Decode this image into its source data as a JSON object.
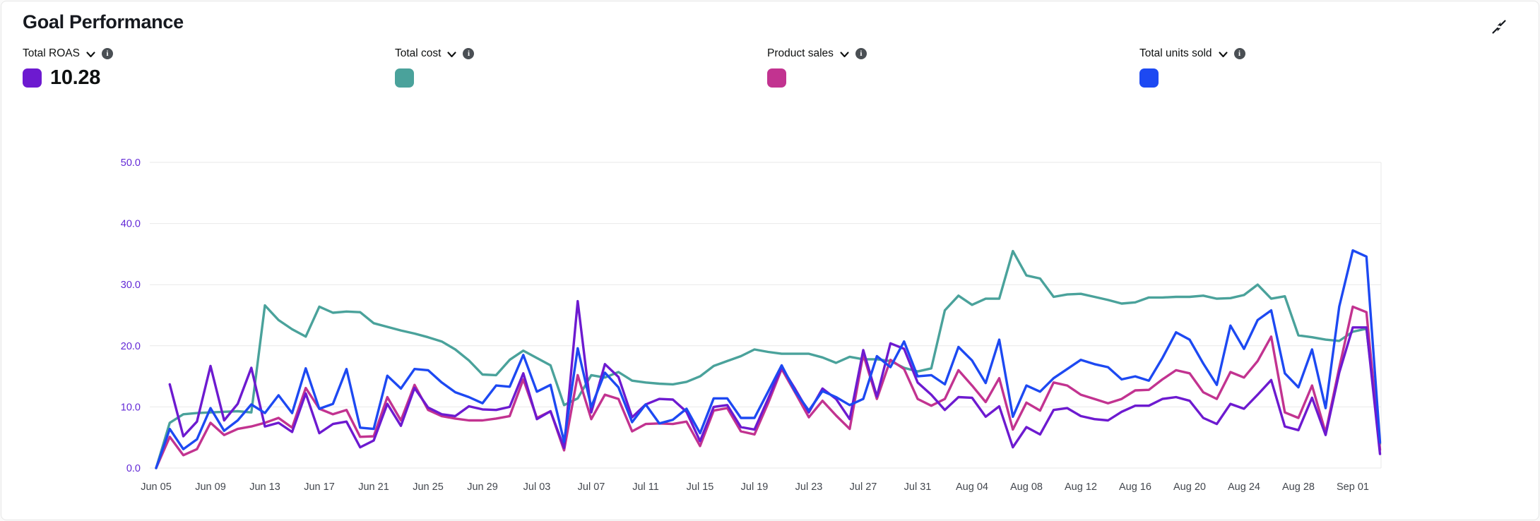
{
  "header": {
    "title": "Goal Performance"
  },
  "toolbar": {
    "collapse_icon": "collapse-diagonal-arrows"
  },
  "metrics": [
    {
      "label": "Total ROAS",
      "value": "10.28",
      "color": "#6d1ad0",
      "dropdown_icon": "chevron-down-icon",
      "info_icon": "info-icon"
    },
    {
      "label": "Total cost",
      "value": "",
      "color": "#4aa29b",
      "dropdown_icon": "chevron-down-icon",
      "info_icon": "info-icon"
    },
    {
      "label": "Product sales",
      "value": "",
      "color": "#c23390",
      "dropdown_icon": "chevron-down-icon",
      "info_icon": "info-icon"
    },
    {
      "label": "Total units sold",
      "value": "",
      "color": "#1d49f2",
      "dropdown_icon": "chevron-down-icon",
      "info_icon": "info-icon"
    }
  ],
  "chart_data": {
    "type": "line",
    "title": "Goal Performance",
    "x_start": "Jun 05",
    "x_end": "Sep 03",
    "x_interval_days": 1,
    "x_tick_labels": [
      "Jun 05",
      "Jun 09",
      "Jun 13",
      "Jun 17",
      "Jun 21",
      "Jun 25",
      "Jun 29",
      "Jul 03",
      "Jul 07",
      "Jul 11",
      "Jul 15",
      "Jul 19",
      "Jul 23",
      "Jul 27",
      "Jul 31",
      "Aug 04",
      "Aug 08",
      "Aug 12",
      "Aug 16",
      "Aug 20",
      "Aug 24",
      "Aug 28",
      "Sep 01"
    ],
    "x_tick_step_days": 4,
    "ylim": [
      0,
      50
    ],
    "y_tick_labels": [
      "0.0",
      "10.0",
      "20.0",
      "30.0",
      "40.0",
      "50.0"
    ],
    "grid": "horizontal",
    "legend_position": "top-swatches",
    "y_axis_label_color": "#6329d6",
    "x_axis_label_color": "#43474e",
    "gridline_color": "#e9e9e9",
    "series": [
      {
        "name": "Total ROAS",
        "id": "total-roas",
        "color": "#6d1ad0",
        "values": [
          null,
          13.7,
          5.2,
          7.6,
          16.7,
          7.8,
          10.5,
          16.4,
          6.8,
          7.4,
          5.9,
          12.2,
          5.7,
          7.2,
          7.6,
          3.4,
          4.5,
          10.5,
          6.9,
          13.1,
          9.9,
          8.8,
          8.5,
          10.1,
          9.6,
          9.5,
          10.0,
          15.5,
          8.0,
          9.3,
          3.3,
          27.3,
          9.1,
          17.0,
          14.9,
          8.3,
          10.4,
          11.3,
          11.2,
          9.2,
          4.4,
          10.0,
          10.3,
          6.7,
          6.3,
          11.3,
          16.5,
          12.9,
          9.1,
          13.0,
          11.3,
          8.0,
          19.3,
          11.7,
          20.4,
          19.5,
          14.0,
          12.0,
          9.5,
          11.6,
          11.5,
          8.4,
          10.1,
          3.4,
          6.7,
          5.5,
          9.5,
          9.8,
          8.5,
          8.0,
          7.8,
          9.2,
          10.2,
          10.2,
          11.3,
          11.6,
          11.0,
          8.2,
          7.2,
          10.5,
          9.7,
          12.0,
          14.4,
          6.8,
          6.2,
          11.5,
          5.4,
          15.6,
          23.0,
          23.0,
          2.3
        ]
      },
      {
        "name": "Total cost",
        "id": "total-cost",
        "color": "#4aa29b",
        "values": [
          0,
          7.4,
          8.8,
          9.0,
          9.1,
          9.2,
          9.3,
          9.1,
          26.6,
          24.2,
          22.7,
          21.5,
          26.4,
          25.4,
          25.6,
          25.5,
          23.7,
          23.1,
          22.5,
          22.0,
          21.4,
          20.7,
          19.4,
          17.6,
          15.3,
          15.2,
          17.7,
          19.2,
          18.0,
          16.8,
          10.3,
          11.4,
          15.2,
          14.8,
          15.7,
          14.3,
          14.0,
          13.8,
          13.7,
          14.1,
          15.0,
          16.7,
          17.5,
          18.3,
          19.4,
          19.0,
          18.7,
          18.7,
          18.7,
          18.1,
          17.2,
          18.2,
          17.8,
          17.8,
          17.5,
          16.4,
          15.8,
          16.3,
          25.8,
          28.2,
          26.7,
          27.7,
          27.7,
          35.5,
          31.5,
          31.0,
          28.0,
          28.4,
          28.5,
          28.0,
          27.5,
          26.9,
          27.1,
          27.9,
          27.9,
          28.0,
          28.0,
          28.2,
          27.7,
          27.8,
          28.3,
          30.0,
          27.7,
          28.1,
          21.7,
          21.4,
          21.0,
          20.8,
          22.3,
          22.8,
          4.0
        ]
      },
      {
        "name": "Product sales",
        "id": "product-sales",
        "color": "#c23390",
        "values": [
          0,
          5.1,
          2.1,
          3.1,
          7.4,
          5.4,
          6.4,
          6.8,
          7.4,
          8.2,
          6.6,
          13.1,
          9.7,
          8.8,
          9.5,
          5.1,
          5.2,
          11.6,
          7.8,
          13.6,
          9.5,
          8.5,
          8.1,
          7.8,
          7.8,
          8.1,
          8.5,
          14.5,
          8.2,
          9.3,
          2.9,
          15.2,
          8.0,
          12.0,
          11.3,
          6.0,
          7.2,
          7.3,
          7.2,
          7.6,
          3.6,
          9.4,
          9.8,
          6.0,
          5.5,
          10.6,
          16.2,
          12.3,
          8.3,
          11.0,
          8.6,
          6.4,
          18.6,
          11.3,
          17.7,
          16.2,
          11.3,
          10.2,
          11.3,
          16.0,
          13.5,
          10.8,
          14.7,
          6.3,
          10.7,
          9.4,
          14.0,
          13.5,
          12.0,
          11.3,
          10.6,
          11.3,
          12.7,
          12.8,
          14.5,
          16.0,
          15.5,
          12.4,
          11.3,
          15.7,
          14.8,
          17.5,
          21.5,
          9.1,
          8.2,
          13.5,
          5.8,
          16.4,
          26.4,
          25.5,
          3.0
        ]
      },
      {
        "name": "Total units sold",
        "id": "total-units-sold",
        "color": "#1d49f2",
        "values": [
          0,
          6.4,
          3.1,
          4.7,
          9.8,
          6.1,
          7.8,
          10.4,
          9.0,
          11.9,
          9.0,
          16.3,
          9.7,
          10.5,
          16.2,
          6.6,
          6.4,
          15.1,
          13.0,
          16.2,
          16.0,
          14.0,
          12.4,
          11.6,
          10.6,
          13.5,
          13.3,
          18.5,
          12.5,
          13.6,
          4.3,
          19.6,
          10.0,
          15.6,
          13.2,
          7.5,
          10.4,
          7.3,
          7.9,
          9.7,
          5.7,
          11.4,
          11.4,
          8.2,
          8.2,
          12.5,
          16.8,
          12.5,
          9.4,
          12.6,
          11.6,
          10.3,
          11.3,
          18.3,
          16.5,
          20.7,
          15.0,
          15.2,
          13.7,
          19.8,
          17.6,
          13.9,
          21.0,
          8.4,
          13.5,
          12.5,
          14.7,
          16.2,
          17.7,
          17.0,
          16.5,
          14.5,
          15.0,
          14.3,
          18.0,
          22.2,
          21.0,
          17.1,
          13.6,
          23.3,
          19.5,
          24.2,
          25.8,
          15.5,
          13.2,
          19.4,
          9.8,
          26.4,
          35.6,
          34.6,
          4.2
        ]
      }
    ]
  }
}
